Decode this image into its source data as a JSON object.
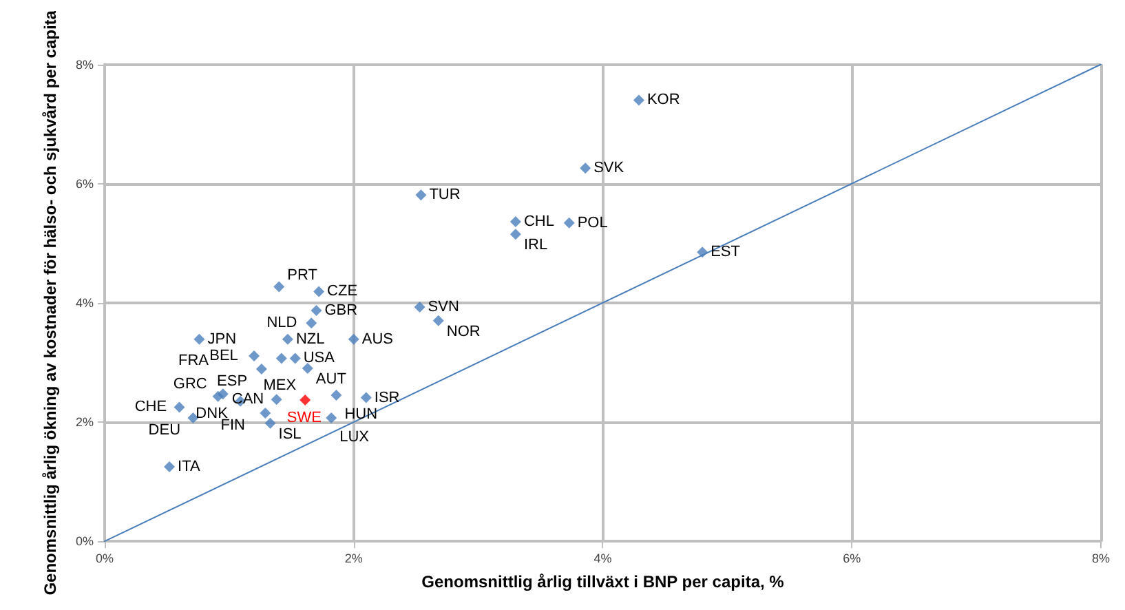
{
  "chart_data": {
    "type": "scatter",
    "xlabel": "Genomsnittlig årlig tillväxt i BNP per capita, %",
    "ylabel": "Genomsnittlig årlig ökning av kostnader för hälso- och sjukvård per capita",
    "xlim": [
      0,
      8
    ],
    "ylim": [
      0,
      8
    ],
    "xticks": [
      {
        "value": 0,
        "label": "0%"
      },
      {
        "value": 2,
        "label": "2%"
      },
      {
        "value": 4,
        "label": "4%"
      },
      {
        "value": 6,
        "label": "6%"
      },
      {
        "value": 8,
        "label": "8%"
      }
    ],
    "yticks": [
      {
        "value": 0,
        "label": "0%"
      },
      {
        "value": 2,
        "label": "2%"
      },
      {
        "value": 4,
        "label": "4%"
      },
      {
        "value": 6,
        "label": "6%"
      },
      {
        "value": 8,
        "label": "8%"
      }
    ],
    "grid": true,
    "marker": "diamond",
    "series": [
      {
        "color": "#4a7ebb",
        "x": [
          4.29,
          3.86,
          2.54,
          3.3,
          3.3,
          3.73,
          4.8,
          2.53,
          2.68,
          1.4,
          1.72,
          1.7,
          1.66,
          1.47,
          2.0,
          0.76,
          1.2,
          1.42,
          1.53,
          1.26,
          1.63,
          1.86,
          2.1,
          1.61,
          1.29,
          1.33,
          1.82,
          0.6,
          0.71,
          0.91,
          0.95,
          1.09,
          1.38,
          0.52
        ],
        "values": [
          7.4,
          6.26,
          5.81,
          5.36,
          5.15,
          5.34,
          4.85,
          3.93,
          3.7,
          4.27,
          4.19,
          3.87,
          3.66,
          3.39,
          3.39,
          3.39,
          3.11,
          3.07,
          3.07,
          2.89,
          2.9,
          2.45,
          2.41,
          2.37,
          2.15,
          1.98,
          2.07,
          2.25,
          2.07,
          2.43,
          2.47,
          2.35,
          2.38,
          1.25
        ],
        "colors": [
          "#4a7ebb",
          "#4a7ebb",
          "#4a7ebb",
          "#4a7ebb",
          "#4a7ebb",
          "#4a7ebb",
          "#4a7ebb",
          "#4a7ebb",
          "#4a7ebb",
          "#4a7ebb",
          "#4a7ebb",
          "#4a7ebb",
          "#4a7ebb",
          "#4a7ebb",
          "#4a7ebb",
          "#4a7ebb",
          "#4a7ebb",
          "#4a7ebb",
          "#4a7ebb",
          "#4a7ebb",
          "#4a7ebb",
          "#4a7ebb",
          "#4a7ebb",
          "#ff0000",
          "#4a7ebb",
          "#4a7ebb",
          "#4a7ebb",
          "#4a7ebb",
          "#4a7ebb",
          "#4a7ebb",
          "#4a7ebb",
          "#4a7ebb",
          "#4a7ebb",
          "#4a7ebb"
        ]
      },
      {
        "type": "line",
        "color": "#4a7ebb",
        "marker": "none",
        "line_style": "solid",
        "x": [
          0,
          8
        ],
        "values": [
          0,
          8
        ]
      }
    ],
    "annotations": [
      {
        "text": "KOR",
        "x": 4.29,
        "y": 7.4
      },
      {
        "text": "SVK",
        "x": 3.86,
        "y": 6.26
      },
      {
        "text": "TUR",
        "x": 2.54,
        "y": 5.81
      },
      {
        "text": "CHL",
        "x": 3.3,
        "y": 5.36
      },
      {
        "text": "IRL",
        "x": 3.3,
        "y": 5.15
      },
      {
        "text": "POL",
        "x": 3.73,
        "y": 5.34
      },
      {
        "text": "EST",
        "x": 4.8,
        "y": 4.85
      },
      {
        "text": "SVN",
        "x": 2.53,
        "y": 3.93
      },
      {
        "text": "NOR",
        "x": 2.68,
        "y": 3.7
      },
      {
        "text": "PRT",
        "x": 1.4,
        "y": 4.27
      },
      {
        "text": "CZE",
        "x": 1.72,
        "y": 4.19
      },
      {
        "text": "GBR",
        "x": 1.7,
        "y": 3.87
      },
      {
        "text": "NLD",
        "x": 1.66,
        "y": 3.66
      },
      {
        "text": "NZL",
        "x": 1.47,
        "y": 3.39
      },
      {
        "text": "AUS",
        "x": 2.0,
        "y": 3.39
      },
      {
        "text": "JPN",
        "x": 0.76,
        "y": 3.39
      },
      {
        "text": "BEL",
        "x": 1.2,
        "y": 3.11
      },
      {
        "text": "MEX",
        "x": 1.42,
        "y": 3.07
      },
      {
        "text": "USA",
        "x": 1.53,
        "y": 3.07
      },
      {
        "text": "ESP",
        "x": 1.26,
        "y": 2.89
      },
      {
        "text": "AUT",
        "x": 1.63,
        "y": 2.9
      },
      {
        "text": "HUN",
        "x": 1.86,
        "y": 2.45
      },
      {
        "text": "ISR",
        "x": 2.1,
        "y": 2.41
      },
      {
        "text": "SWE",
        "x": 1.61,
        "y": 2.37
      },
      {
        "text": "FIN",
        "x": 1.29,
        "y": 2.15
      },
      {
        "text": "ISL",
        "x": 1.33,
        "y": 1.98
      },
      {
        "text": "LUX",
        "x": 1.82,
        "y": 2.07
      },
      {
        "text": "CHE",
        "x": 0.6,
        "y": 2.25
      },
      {
        "text": "DEU",
        "x": 0.71,
        "y": 2.07
      },
      {
        "text": "GRC",
        "x": 0.91,
        "y": 2.43
      },
      {
        "text": "FRA",
        "x": 0.95,
        "y": 2.47
      },
      {
        "text": "DNK",
        "x": 1.09,
        "y": 2.35
      },
      {
        "text": "CAN",
        "x": 1.38,
        "y": 2.38
      },
      {
        "text": "ITA",
        "x": 0.52,
        "y": 1.25
      }
    ]
  }
}
